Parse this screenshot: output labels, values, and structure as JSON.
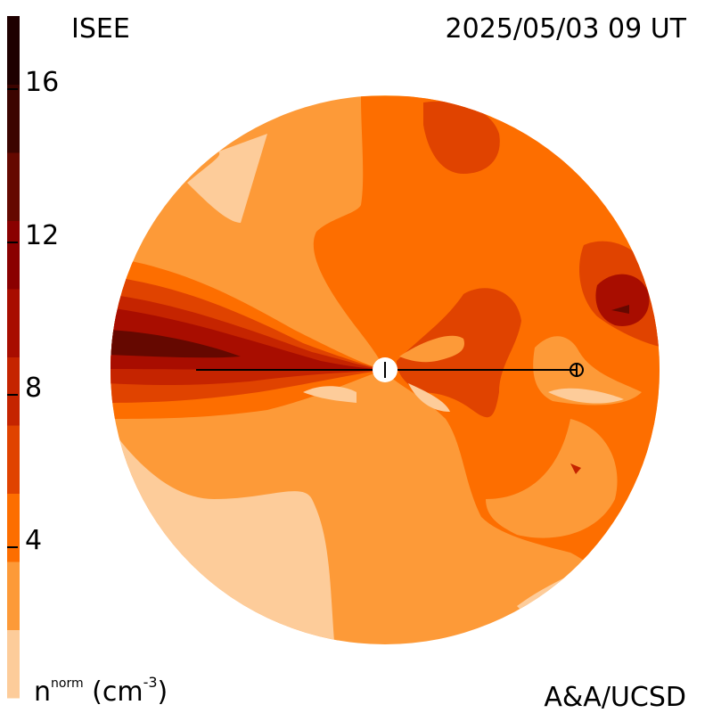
{
  "header": {
    "source": "ISEE",
    "timestamp": "2025/05/03 09 UT"
  },
  "footer": {
    "credit": "A&A/UCSD"
  },
  "colorbar": {
    "quantity": "n",
    "superscript": "norm",
    "unit_base": "(cm",
    "unit_exp": "-3",
    "unit_close": ")",
    "tick_labels": [
      "16",
      "12",
      "8",
      "4"
    ],
    "levels": [
      {
        "color": "#fdcc9a"
      },
      {
        "color": "#fd9a38"
      },
      {
        "color": "#fd6e00"
      },
      {
        "color": "#e04300"
      },
      {
        "color": "#c52400"
      },
      {
        "color": "#a80d00"
      },
      {
        "color": "#8a0000"
      },
      {
        "color": "#650800"
      },
      {
        "color": "#3c0400"
      },
      {
        "color": "#1e0000"
      }
    ]
  },
  "plot": {
    "markers": [
      {
        "name": "sun-marker"
      },
      {
        "name": "earth-marker"
      }
    ]
  }
}
